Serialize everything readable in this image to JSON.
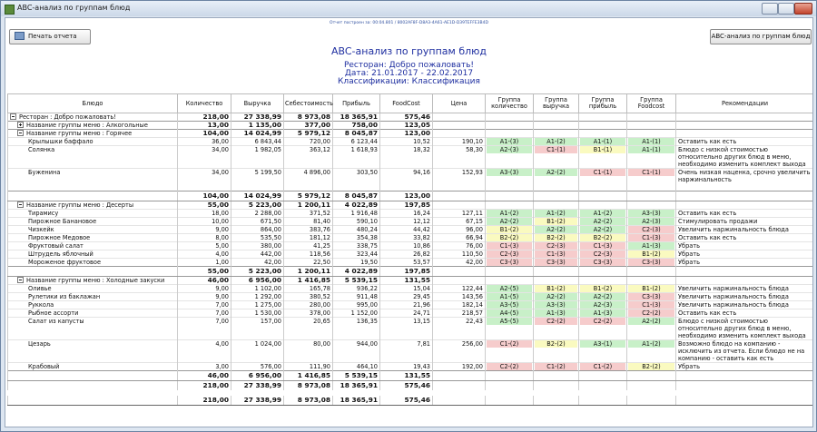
{
  "window": {
    "title": "ABC-анализ по группам блюд"
  },
  "report": {
    "meta": "Отчет построен за: 00:04.801 / 8002AF8F-D8A3-4A61-AE1D-D39TEFFE3B4D"
  },
  "buttons": {
    "print": "Печать отчета",
    "abc": "ABC-анализ по группам блюд"
  },
  "header": {
    "title": "ABC-анализ по группам блюд",
    "restaurant": "Ресторан: Добро пожаловать!",
    "date": "Дата: 21.01.2017 - 22.02.2017",
    "classification": "Классификации: Классификация"
  },
  "table": {
    "columns": [
      "Блюдо",
      "Количество",
      "Выручка",
      "Себестоимость",
      "Прибыль",
      "FoodCost",
      "Цена",
      "Группа количество",
      "Группа выручка",
      "Группа прибыль",
      "Группа Foodcost",
      "Рекомендации"
    ],
    "rows": [
      {
        "kind": "group",
        "level": 0,
        "expanded": true,
        "cells": [
          "Ресторан : Добро пожаловать!",
          "218,00",
          "27 338,99",
          "8 973,08",
          "18 365,91",
          "575,46"
        ]
      },
      {
        "kind": "group",
        "level": 1,
        "expanded": false,
        "cells": [
          "Название группы меню : Алкогольные",
          "13,00",
          "1 135,00",
          "377,00",
          "758,00",
          "123,05"
        ]
      },
      {
        "kind": "group",
        "level": 1,
        "expanded": true,
        "cells": [
          "Название группы меню : Горячее",
          "104,00",
          "14 024,99",
          "5 979,12",
          "8 045,87",
          "123,00"
        ]
      },
      {
        "kind": "dish",
        "cells": [
          "Крылышки баффало",
          "36,00",
          "6 843,44",
          "720,00",
          "6 123,44",
          "10,52",
          "190,10",
          "A1-(3)",
          "A1-(2)",
          "A1-(1)",
          "A1-(1)",
          "Оставить как есть"
        ]
      },
      {
        "kind": "dish",
        "cells": [
          "Солянка",
          "34,00",
          "1 982,05",
          "363,12",
          "1 618,93",
          "18,32",
          "58,30",
          "A2-(3)",
          "C1-(1)",
          "B1-(1)",
          "A1-(1)",
          "Блюдо с низкой стоимостью относительно других блюд в меню, необходимо изменить комплект выхода"
        ]
      },
      {
        "kind": "dish",
        "cells": [
          "Буженина",
          "34,00",
          "5 199,50",
          "4 896,00",
          "303,50",
          "94,16",
          "152,93",
          "A3-(3)",
          "A2-(2)",
          "C1-(1)",
          "C1-(1)",
          "Очень низкая наценка, срочно увеличить наржинальность"
        ]
      },
      {
        "kind": "total",
        "cells": [
          "104,00",
          "14 024,99",
          "5 979,12",
          "8 045,87",
          "123,00"
        ]
      },
      {
        "kind": "group",
        "level": 1,
        "expanded": true,
        "cells": [
          "Название группы меню : Десерты",
          "55,00",
          "5 223,00",
          "1 200,11",
          "4 022,89",
          "197,85"
        ]
      },
      {
        "kind": "dish",
        "cells": [
          "Тирамису",
          "18,00",
          "2 288,00",
          "371,52",
          "1 916,48",
          "16,24",
          "127,11",
          "A1-(2)",
          "A1-(2)",
          "A1-(2)",
          "A3-(3)",
          "Оставить как есть"
        ]
      },
      {
        "kind": "dish",
        "cells": [
          "Пирожное Банановое",
          "10,00",
          "671,50",
          "81,40",
          "590,10",
          "12,12",
          "67,15",
          "A2-(2)",
          "B1-(2)",
          "A2-(2)",
          "A2-(3)",
          "Стимулировать продажи"
        ]
      },
      {
        "kind": "dish",
        "cells": [
          "Чизкейк",
          "9,00",
          "864,00",
          "383,76",
          "480,24",
          "44,42",
          "96,00",
          "B1-(2)",
          "A2-(2)",
          "A2-(2)",
          "C2-(3)",
          "Увеличить наржинальность блюда"
        ]
      },
      {
        "kind": "dish",
        "cells": [
          "Пирожное Медовое",
          "8,00",
          "535,50",
          "181,12",
          "354,38",
          "33,82",
          "66,94",
          "B2-(2)",
          "B2-(2)",
          "B2-(2)",
          "C1-(3)",
          "Оставить как есть"
        ]
      },
      {
        "kind": "dish",
        "cells": [
          "Фруктовый салат",
          "5,00",
          "380,00",
          "41,25",
          "338,75",
          "10,86",
          "76,00",
          "C1-(3)",
          "C2-(3)",
          "C1-(3)",
          "A1-(3)",
          "Убрать"
        ]
      },
      {
        "kind": "dish",
        "cells": [
          "Штрудель яблочный",
          "4,00",
          "442,00",
          "118,56",
          "323,44",
          "26,82",
          "110,50",
          "C2-(3)",
          "C1-(3)",
          "C2-(3)",
          "B1-(2)",
          "Убрать"
        ]
      },
      {
        "kind": "dish",
        "cells": [
          "Мороженое фруктовое",
          "1,00",
          "42,00",
          "22,50",
          "19,50",
          "53,57",
          "42,00",
          "C3-(3)",
          "C3-(3)",
          "C3-(3)",
          "C3-(3)",
          "Убрать"
        ]
      },
      {
        "kind": "total",
        "cells": [
          "55,00",
          "5 223,00",
          "1 200,11",
          "4 022,89",
          "197,85"
        ]
      },
      {
        "kind": "group",
        "level": 1,
        "expanded": true,
        "cells": [
          "Название группы меню : Холодные закуски",
          "46,00",
          "6 956,00",
          "1 416,85",
          "5 539,15",
          "131,55"
        ]
      },
      {
        "kind": "dish",
        "cells": [
          "Оливье",
          "9,00",
          "1 102,00",
          "165,78",
          "936,22",
          "15,04",
          "122,44",
          "A2-(5)",
          "B1-(2)",
          "B1-(2)",
          "B1-(2)",
          "Увеличить наржинальность блюда"
        ]
      },
      {
        "kind": "dish",
        "cells": [
          "Рулетики из баклажан",
          "9,00",
          "1 292,00",
          "380,52",
          "911,48",
          "29,45",
          "143,56",
          "A1-(5)",
          "A2-(2)",
          "A2-(2)",
          "C3-(3)",
          "Увеличить наржинальность блюда"
        ]
      },
      {
        "kind": "dish",
        "cells": [
          "Руккола",
          "7,00",
          "1 275,00",
          "280,00",
          "995,00",
          "21,96",
          "182,14",
          "A3-(5)",
          "A3-(3)",
          "A2-(3)",
          "C1-(3)",
          "Увеличить наржинальность блюда"
        ]
      },
      {
        "kind": "dish",
        "cells": [
          "Рыбное ассорти",
          "7,00",
          "1 530,00",
          "378,00",
          "1 152,00",
          "24,71",
          "218,57",
          "A4-(5)",
          "A1-(3)",
          "A1-(3)",
          "C2-(2)",
          "Оставить как есть"
        ]
      },
      {
        "kind": "dish",
        "cells": [
          "Салат из капусты",
          "7,00",
          "157,00",
          "20,65",
          "136,35",
          "13,15",
          "22,43",
          "A5-(5)",
          "C2-(2)",
          "C2-(2)",
          "A2-(2)",
          "Блюдо с низкой стоимостью относительно других блюд в меню, необходимо изменить комплект выхода"
        ]
      },
      {
        "kind": "dish",
        "cells": [
          "Цезарь",
          "4,00",
          "1 024,00",
          "80,00",
          "944,00",
          "7,81",
          "256,00",
          "C1-(2)",
          "B2-(2)",
          "A3-(1)",
          "A1-(2)",
          "Возможно блюдо на компанию - исключить из отчета. Если блюдо не на компанию - оставить как есть"
        ]
      },
      {
        "kind": "dish",
        "cells": [
          "Крабовый",
          "3,00",
          "576,00",
          "111,90",
          "464,10",
          "19,43",
          "192,00",
          "C2-(2)",
          "C1-(2)",
          "C1-(2)",
          "B2-(2)",
          "Убрать"
        ]
      },
      {
        "kind": "total",
        "cells": [
          "46,00",
          "6 956,00",
          "1 416,85",
          "5 539,15",
          "131,55"
        ]
      },
      {
        "kind": "total",
        "cells": [
          "218,00",
          "27 338,99",
          "8 973,08",
          "18 365,91",
          "575,46"
        ]
      },
      {
        "kind": "grand",
        "cells": [
          "218,00",
          "27 338,99",
          "8 973,08",
          "18 365,91",
          "575,46"
        ]
      }
    ]
  }
}
